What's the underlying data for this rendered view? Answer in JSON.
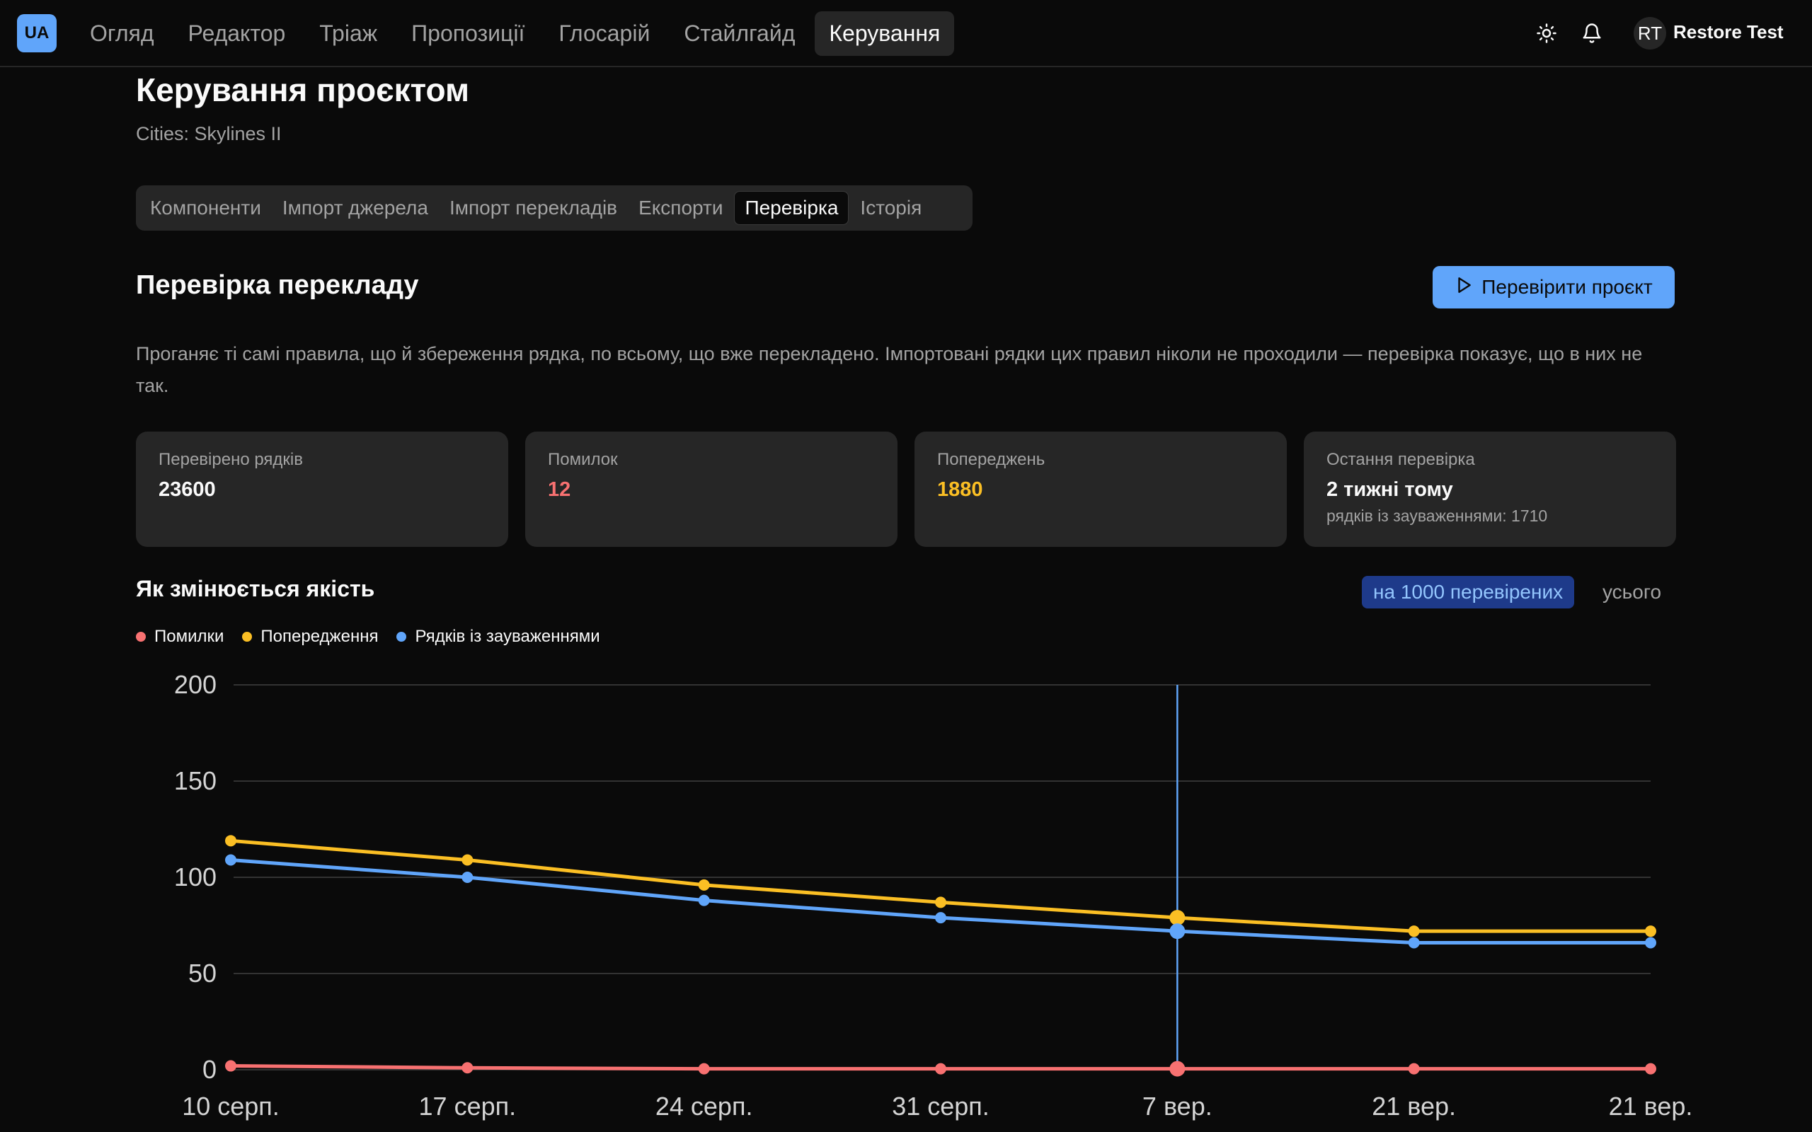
{
  "app": {
    "logo": "UA"
  },
  "nav": {
    "items": [
      {
        "label": "Огляд"
      },
      {
        "label": "Редактор"
      },
      {
        "label": "Тріаж"
      },
      {
        "label": "Пропозиції"
      },
      {
        "label": "Глосарій"
      },
      {
        "label": "Стайлгайд"
      },
      {
        "label": "Керування",
        "active": true
      }
    ]
  },
  "user": {
    "initials": "RT",
    "name": "Restore Test"
  },
  "icons": {
    "theme": "sun-icon",
    "notifications": "bell-icon",
    "run": "play-icon"
  },
  "page": {
    "title": "Керування проєктом",
    "subtitle": "Cities: Skylines II"
  },
  "tabs": [
    {
      "label": "Компоненти"
    },
    {
      "label": "Імпорт джерела"
    },
    {
      "label": "Імпорт перекладів"
    },
    {
      "label": "Експорти"
    },
    {
      "label": "Перевірка",
      "active": true
    },
    {
      "label": "Історія"
    }
  ],
  "section": {
    "title": "Перевірка перекладу",
    "button_label": "Перевірити проєкт",
    "description": "Проганяє ті самі правила, що й збереження рядка, по всьому, що вже перекладено. Імпортовані рядки цих правил ніколи не проходили — перевірка показує, що в них не так."
  },
  "stats": [
    {
      "label": "Перевірено рядків",
      "value": "23600",
      "color": "#fafafa"
    },
    {
      "label": "Помилок",
      "value": "12",
      "color": "#f87171"
    },
    {
      "label": "Попереджень",
      "value": "1880",
      "color": "#fbbf24"
    },
    {
      "label": "Остання перевірка",
      "value": "2 тижні тому",
      "note": "рядків із зауваженнями: 1710",
      "color": "#fafafa"
    }
  ],
  "quality": {
    "title": "Як змінюється якість",
    "toggle_active": "на 1000 перевірених",
    "toggle_inactive": "усього"
  },
  "colors": {
    "errors": "#f87171",
    "warnings": "#fbbf24",
    "flagged": "#60a5fa",
    "accent": "#60a5fa"
  },
  "chart_data": {
    "type": "line",
    "categories": [
      "10 серп.",
      "17 серп.",
      "24 серп.",
      "31 серп.",
      "7 вер.",
      "21 вер.",
      "21 вер."
    ],
    "series": [
      {
        "name": "Помилки",
        "color": "#f87171",
        "values": [
          2,
          1,
          0.5,
          0.5,
          0.5,
          0.5,
          0.5
        ]
      },
      {
        "name": "Попередження",
        "color": "#fbbf24",
        "values": [
          119,
          109,
          96,
          87,
          79,
          72,
          72
        ]
      },
      {
        "name": "Рядків із зауваженнями",
        "color": "#60a5fa",
        "values": [
          109,
          100,
          88,
          79,
          72,
          66,
          66
        ]
      }
    ],
    "yticks": [
      0,
      50,
      100,
      150,
      200
    ],
    "ylim": [
      0,
      200
    ],
    "highlight_index": 4,
    "grid": true,
    "legend": "top-left"
  }
}
